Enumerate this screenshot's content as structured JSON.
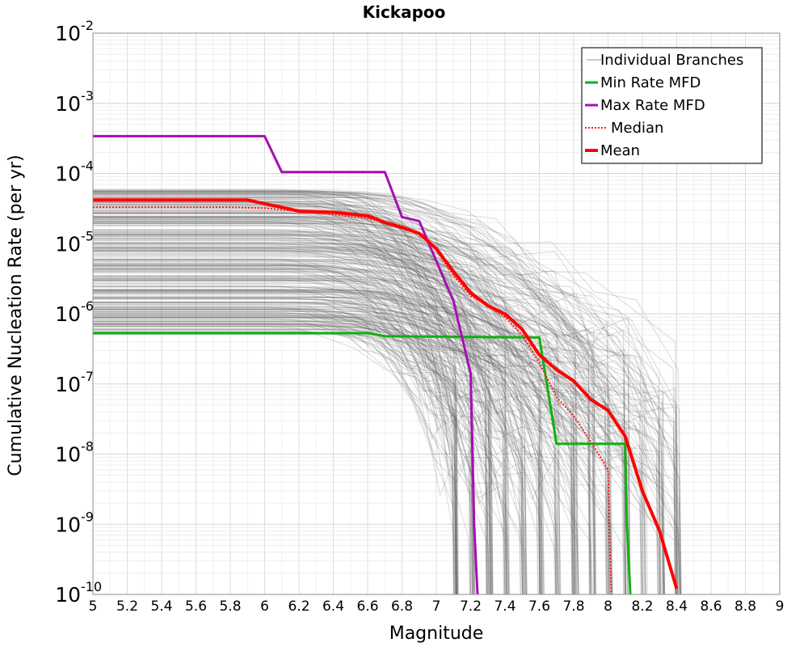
{
  "chart_data": {
    "type": "line",
    "title": "Kickapoo",
    "xlabel": "Magnitude",
    "ylabel": "Cumulative Nucleation Rate (per yr)",
    "xlim": [
      5,
      9
    ],
    "ylim": [
      1e-10,
      0.01
    ],
    "yscale": "log",
    "x_ticks": [
      "5",
      "5.2",
      "5.4",
      "5.6",
      "5.8",
      "6",
      "6.2",
      "6.4",
      "6.6",
      "6.8",
      "7",
      "7.2",
      "7.4",
      "7.6",
      "7.8",
      "8",
      "8.2",
      "8.4",
      "8.6",
      "8.8",
      "9"
    ],
    "y_ticks": [
      {
        "base": "10",
        "exp": "-2"
      },
      {
        "base": "10",
        "exp": "-3"
      },
      {
        "base": "10",
        "exp": "-4"
      },
      {
        "base": "10",
        "exp": "-5"
      },
      {
        "base": "10",
        "exp": "-6"
      },
      {
        "base": "10",
        "exp": "-7"
      },
      {
        "base": "10",
        "exp": "-8"
      },
      {
        "base": "10",
        "exp": "-9"
      },
      {
        "base": "10",
        "exp": "-10"
      }
    ],
    "grid": true,
    "legend_position": "top-right",
    "legend": [
      "Individual Branches",
      "Min Rate MFD",
      "Max Rate MFD",
      "Median",
      "Mean"
    ],
    "colors": {
      "branches": "#555555",
      "min": "#11b011",
      "max": "#a50fb5",
      "median": "#ff1a1a",
      "mean": "#ff0000",
      "grid": "#e6e6e6"
    },
    "series": [
      {
        "name": "Min Rate MFD",
        "x": [
          5.0,
          6.6,
          6.7,
          7.6,
          7.7,
          8.1,
          8.11,
          8.13
        ],
        "y": [
          5.3e-07,
          5.3e-07,
          4.8e-07,
          4.6e-07,
          1.4e-08,
          1.4e-08,
          1e-09,
          1e-10
        ]
      },
      {
        "name": "Max Rate MFD",
        "x": [
          5.0,
          6.0,
          6.1,
          6.7,
          6.8,
          6.9,
          7.1,
          7.2,
          7.22,
          7.24
        ],
        "y": [
          0.00034,
          0.00034,
          0.000105,
          0.000105,
          2.4e-05,
          2.1e-05,
          1.5e-06,
          1.4e-07,
          1e-09,
          1e-10
        ]
      },
      {
        "name": "Median",
        "x": [
          5.0,
          5.8,
          6.0,
          6.2,
          6.4,
          6.6,
          6.8,
          6.9,
          7.0,
          7.1,
          7.2,
          7.3,
          7.4,
          7.5,
          7.6,
          7.7,
          7.8,
          7.9,
          8.0,
          8.01,
          8.02
        ],
        "y": [
          3.3e-05,
          3.3e-05,
          3.2e-05,
          2.9e-05,
          2.6e-05,
          2.3e-05,
          1.8e-05,
          1.4e-05,
          8e-06,
          3.5e-06,
          1.8e-06,
          1.3e-06,
          9e-07,
          5e-07,
          2e-07,
          6.5e-08,
          3.5e-08,
          1.5e-08,
          6e-09,
          5e-10,
          1e-10
        ]
      },
      {
        "name": "Mean",
        "x": [
          5.0,
          5.9,
          6.0,
          6.1,
          6.2,
          6.4,
          6.6,
          6.7,
          6.8,
          6.9,
          7.0,
          7.1,
          7.2,
          7.3,
          7.4,
          7.5,
          7.6,
          7.7,
          7.8,
          7.9,
          8.0,
          8.1,
          8.2,
          8.3,
          8.4
        ],
        "y": [
          4.2e-05,
          4.2e-05,
          3.7e-05,
          3.3e-05,
          2.9e-05,
          2.8e-05,
          2.5e-05,
          2e-05,
          1.7e-05,
          1.4e-05,
          8.5e-06,
          4e-06,
          2e-06,
          1.3e-06,
          1e-06,
          6e-07,
          2.6e-07,
          1.6e-07,
          1.1e-07,
          6e-08,
          4.2e-08,
          1.8e-08,
          3e-09,
          8e-10,
          1.2e-10
        ]
      }
    ]
  }
}
